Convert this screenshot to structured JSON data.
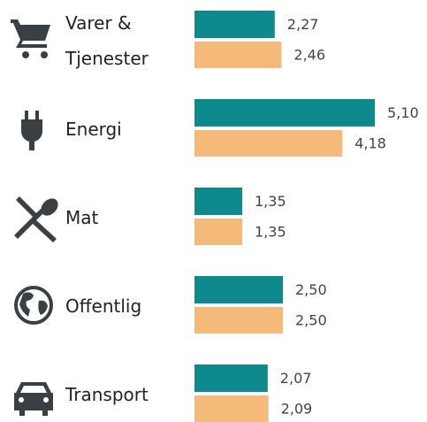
{
  "chart_data": {
    "type": "bar",
    "orientation": "horizontal",
    "categories": [
      "Varer & Tjenester",
      "Energi",
      "Mat",
      "Offentlig",
      "Transport"
    ],
    "series": [
      {
        "color": "#0e8a8f",
        "values": [
          2.27,
          5.1,
          1.35,
          2.5,
          2.07
        ],
        "value_labels": [
          "2,27",
          "5,10",
          "1,35",
          "2,50",
          "2,07"
        ]
      },
      {
        "color": "#f5b97a",
        "values": [
          2.46,
          4.18,
          1.35,
          2.5,
          2.09
        ],
        "value_labels": [
          "2,46",
          "4,18",
          "1,35",
          "2,50",
          "2,09"
        ]
      }
    ]
  }
}
